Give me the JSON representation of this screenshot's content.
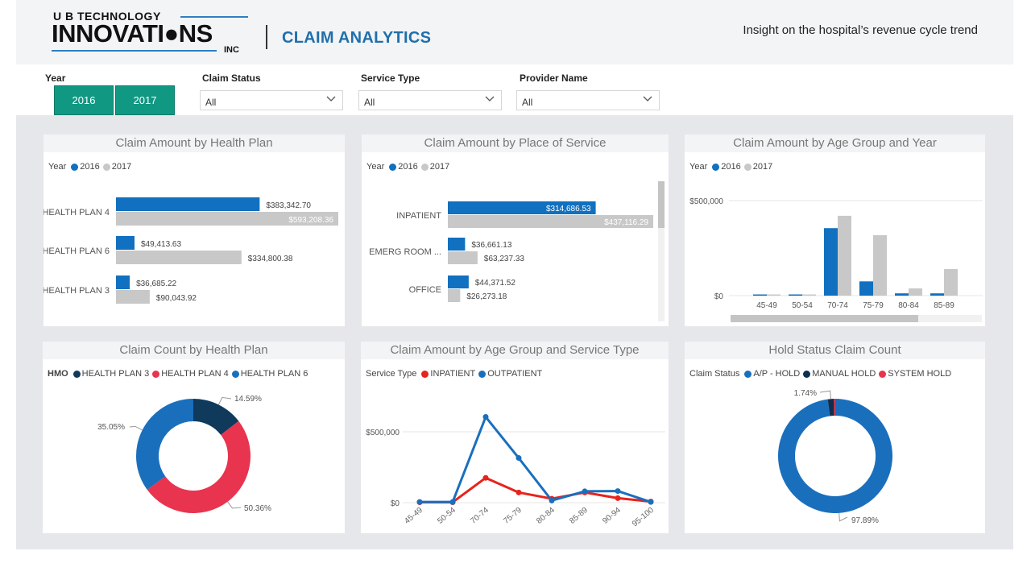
{
  "header": {
    "logo_top": "U B TECHNOLOGY",
    "logo_main": "INNOVATI●NS",
    "logo_inc": "INC",
    "app_title": "CLAIM ANALYTICS",
    "tagline": "Insight on the hospital’s revenue cycle trend"
  },
  "filters": {
    "year": {
      "label": "Year",
      "options": [
        "2016",
        "2017"
      ]
    },
    "claim_status": {
      "label": "Claim Status",
      "value": "All"
    },
    "service_type": {
      "label": "Service Type",
      "value": "All"
    },
    "provider_name": {
      "label": "Provider Name",
      "value": "All"
    }
  },
  "icons": {
    "dropdown": "chevron-down-icon",
    "legend_marker": "dot-icon"
  },
  "colors": {
    "y2016": "#1170bf",
    "y2017": "#c8c8c8",
    "plan3": "#0f3a5c",
    "plan4": "#e8344e",
    "plan6": "#1a6fbd",
    "inpatient": "#e8221c",
    "outpatient": "#1a6fbd",
    "ap_hold": "#1a6fbd",
    "manual_hold": "#0f2f4f",
    "system_hold": "#e8344e",
    "accent": "#119883"
  },
  "chart_data": [
    {
      "id": "health_plan",
      "type": "bar",
      "orientation": "horizontal",
      "title": "Claim Amount by Health Plan",
      "legend_title": "Year",
      "categories": [
        "HEALTH PLAN 4",
        "HEALTH PLAN 6",
        "HEALTH PLAN 3"
      ],
      "series": [
        {
          "name": "2016",
          "values": [
            383342.7,
            49413.63,
            36685.22
          ],
          "labels": [
            "$383,342.70",
            "$49,413.63",
            "$36,685.22"
          ]
        },
        {
          "name": "2017",
          "values": [
            593208.36,
            334800.38,
            90043.92
          ],
          "labels": [
            "$593,208.36",
            "$334,800.38",
            "$90,043.92"
          ]
        }
      ],
      "legend": "top-left"
    },
    {
      "id": "place_of_service",
      "type": "bar",
      "orientation": "horizontal",
      "title": "Claim Amount by Place of Service",
      "legend_title": "Year",
      "categories": [
        "INPATIENT",
        "EMERG ROOM ...",
        "OFFICE"
      ],
      "series": [
        {
          "name": "2016",
          "values": [
            314686.53,
            36661.13,
            44371.52
          ],
          "labels": [
            "$314,686.53",
            "$36,661.13",
            "$44,371.52"
          ]
        },
        {
          "name": "2017",
          "values": [
            437116.29,
            63237.33,
            26273.18
          ],
          "labels": [
            "$437,116.29",
            "$63,237.33",
            "$26,273.18"
          ]
        }
      ],
      "legend": "top-left"
    },
    {
      "id": "age_group_year",
      "type": "bar",
      "orientation": "vertical",
      "title": "Claim Amount by Age Group and Year",
      "legend_title": "Year",
      "categories": [
        "45-49",
        "50-54",
        "70-74",
        "75-79",
        "80-84",
        "85-89"
      ],
      "series": [
        {
          "name": "2016",
          "values": [
            5000,
            5000,
            355000,
            75000,
            12000,
            12000
          ]
        },
        {
          "name": "2017",
          "values": [
            3000,
            3000,
            420000,
            318000,
            38000,
            140000
          ]
        }
      ],
      "y_ticks": [
        {
          "value": 500000,
          "label": "$500,000"
        },
        {
          "value": 0,
          "label": "$0"
        }
      ],
      "ylim": [
        0,
        550000
      ],
      "grid": true,
      "legend": "top-left"
    },
    {
      "id": "count_health_plan",
      "type": "pie",
      "title": "Claim Count by Health Plan",
      "legend_title": "HMO",
      "slices": [
        {
          "name": "HEALTH PLAN 3",
          "value": 14.59,
          "label": "14.59%"
        },
        {
          "name": "HEALTH PLAN 4",
          "value": 50.36,
          "label": "50.36%"
        },
        {
          "name": "HEALTH PLAN 6",
          "value": 35.05,
          "label": "35.05%"
        }
      ],
      "legend": "top-left"
    },
    {
      "id": "age_service_type",
      "type": "line",
      "title": "Claim Amount by Age Group and  Service Type",
      "legend_title": "Service Type",
      "x": [
        "45-49",
        "50-54",
        "70-74",
        "75-79",
        "80-84",
        "85-89",
        "90-94",
        "95-100"
      ],
      "series": [
        {
          "name": "INPATIENT",
          "values": [
            3000,
            3000,
            175000,
            72000,
            28000,
            72000,
            32000,
            8000
          ]
        },
        {
          "name": "OUTPATIENT",
          "values": [
            5000,
            5000,
            605000,
            315000,
            15000,
            80000,
            82000,
            5000
          ]
        }
      ],
      "y_ticks": [
        {
          "value": 500000,
          "label": "$500,000"
        },
        {
          "value": 0,
          "label": "$0"
        }
      ],
      "ylim": [
        0,
        650000
      ],
      "grid": true,
      "legend": "top-left"
    },
    {
      "id": "hold_status",
      "type": "pie",
      "title": "Hold Status Claim Count",
      "legend_title": "Claim Status",
      "slices": [
        {
          "name": "A/P - HOLD",
          "value": 97.89,
          "label": "97.89%"
        },
        {
          "name": "MANUAL HOLD",
          "value": 1.74,
          "label": "1.74%"
        },
        {
          "name": "SYSTEM HOLD",
          "value": 0.37,
          "label": ""
        }
      ],
      "legend": "top-left"
    }
  ]
}
